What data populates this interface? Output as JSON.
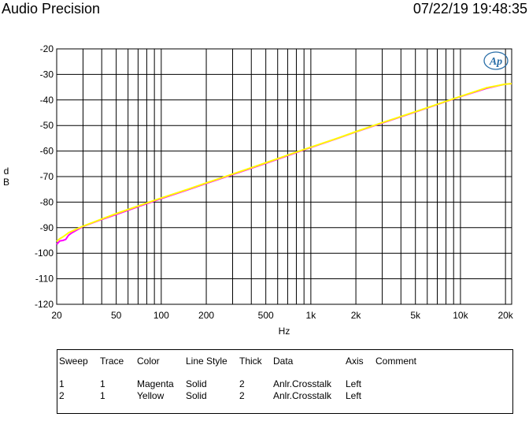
{
  "header": {
    "title": "Audio Precision",
    "datetime": "07/22/19 19:48:35"
  },
  "logo_text": "Ap",
  "chart_data": {
    "type": "line",
    "title": "",
    "xlabel": "Hz",
    "ylabel": "dB",
    "xscale": "log",
    "xlim": [
      20,
      22000
    ],
    "ylim": [
      -120,
      -20
    ],
    "grid": true,
    "x_ticks": [
      20,
      50,
      100,
      200,
      500,
      1000,
      2000,
      5000,
      10000,
      20000
    ],
    "x_tick_labels": [
      "20",
      "50",
      "100",
      "200",
      "500",
      "1k",
      "2k",
      "5k",
      "10k",
      "20k"
    ],
    "y_ticks": [
      -20,
      -30,
      -40,
      -50,
      -60,
      -70,
      -80,
      -90,
      -100,
      -110,
      -120
    ],
    "y_tick_labels": [
      "-20",
      "-30",
      "-40",
      "-50",
      "-60",
      "-70",
      "-80",
      "-90",
      "-100",
      "-110",
      "-120"
    ],
    "series": [
      {
        "color": "#ff00ff",
        "x": [
          20,
          21,
          22,
          23,
          24,
          25,
          30,
          40,
          50,
          70,
          100,
          150,
          200,
          300,
          500,
          700,
          1000,
          1500,
          2000,
          3000,
          5000,
          7000,
          10000,
          15000,
          20000,
          22000
        ],
        "y": [
          -96.5,
          -95.2,
          -95.0,
          -94.6,
          -93.0,
          -92.2,
          -89.5,
          -86.8,
          -84.8,
          -81.8,
          -78.6,
          -75.2,
          -72.7,
          -69.2,
          -64.8,
          -61.8,
          -58.6,
          -55.1,
          -52.5,
          -49.0,
          -44.7,
          -41.8,
          -38.7,
          -35.4,
          -33.8,
          -33.6
        ]
      },
      {
        "color": "#ffff00",
        "x": [
          20,
          21,
          22,
          23,
          24,
          25,
          30,
          40,
          50,
          70,
          100,
          150,
          200,
          300,
          500,
          700,
          1000,
          1500,
          2000,
          3000,
          5000,
          7000,
          10000,
          15000,
          20000,
          22000
        ],
        "y": [
          -95.4,
          -94.3,
          -93.6,
          -92.8,
          -92.0,
          -91.5,
          -89.4,
          -86.6,
          -84.5,
          -81.5,
          -78.4,
          -75.0,
          -72.5,
          -69.0,
          -64.6,
          -61.6,
          -58.5,
          -55.0,
          -52.4,
          -48.9,
          -44.6,
          -41.7,
          -38.6,
          -35.2,
          -33.8,
          -33.6
        ]
      }
    ]
  },
  "legend": {
    "headers": [
      "Sweep",
      "Trace",
      "Color",
      "Line Style",
      "Thick",
      "Data",
      "Axis",
      "Comment"
    ],
    "rows": [
      [
        "1",
        "1",
        "Magenta",
        "Solid",
        "2",
        "Anlr.Crosstalk",
        "Left",
        ""
      ],
      [
        "2",
        "1",
        "Yellow",
        "Solid",
        "2",
        "Anlr.Crosstalk",
        "Left",
        ""
      ]
    ]
  }
}
